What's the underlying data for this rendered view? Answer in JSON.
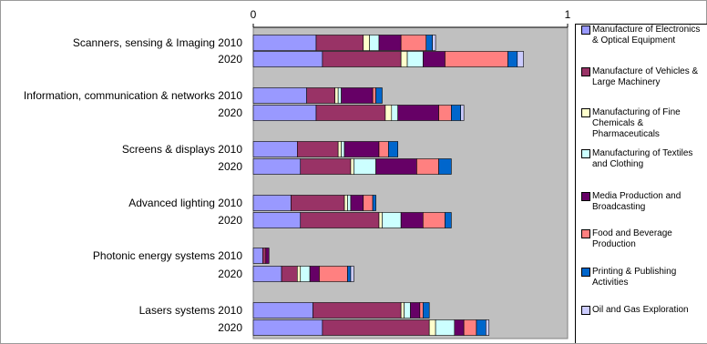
{
  "chart_data": {
    "type": "bar",
    "orientation": "horizontal",
    "stacked": true,
    "xlim": [
      0,
      1
    ],
    "x_ticks": [
      "0",
      "1"
    ],
    "grid": false,
    "legend_position": "right",
    "plot_background": "#c0c0c0",
    "categories": [
      "Scanners, sensing & Imaging 2010",
      "2020",
      "Information, communication & networks 2010",
      "2020",
      "Screens & displays 2010",
      "2020",
      "Advanced lighting 2010",
      "2020",
      "Photonic energy systems 2010",
      "2020",
      "Lasers systems 2010",
      "2020"
    ],
    "series": [
      {
        "name": "Manufacture of Electronics & Optical Equipment",
        "color": "#9999ff",
        "values": [
          0.2,
          0.22,
          0.17,
          0.2,
          0.14,
          0.15,
          0.12,
          0.15,
          0.03,
          0.09,
          0.19,
          0.22
        ]
      },
      {
        "name": "Manufacture of Vehicles & Large Machinery",
        "color": "#993366",
        "values": [
          0.15,
          0.25,
          0.09,
          0.22,
          0.13,
          0.16,
          0.17,
          0.25,
          0.01,
          0.05,
          0.28,
          0.34
        ]
      },
      {
        "name": "Manufacturing of Fine Chemicals & Pharmaceuticals",
        "color": "#ffffcc",
        "values": [
          0.02,
          0.02,
          0.01,
          0.02,
          0.01,
          0.01,
          0.01,
          0.01,
          0.0,
          0.01,
          0.01,
          0.02
        ]
      },
      {
        "name": "Manufacturing of Textiles and Clothing",
        "color": "#ccffff",
        "values": [
          0.03,
          0.05,
          0.01,
          0.02,
          0.01,
          0.07,
          0.01,
          0.06,
          0.0,
          0.03,
          0.02,
          0.06
        ]
      },
      {
        "name": "Media Production and Broadcasting",
        "color": "#660066",
        "values": [
          0.07,
          0.07,
          0.1,
          0.13,
          0.11,
          0.13,
          0.04,
          0.07,
          0.01,
          0.03,
          0.03,
          0.03
        ]
      },
      {
        "name": "Food and Beverage Production",
        "color": "#ff8080",
        "values": [
          0.08,
          0.2,
          0.01,
          0.04,
          0.03,
          0.07,
          0.03,
          0.07,
          0.0,
          0.09,
          0.01,
          0.04
        ]
      },
      {
        "name": "Printing & Publishing Activities",
        "color": "#0066cc",
        "values": [
          0.02,
          0.03,
          0.02,
          0.03,
          0.03,
          0.04,
          0.01,
          0.02,
          0.0,
          0.01,
          0.02,
          0.03
        ]
      },
      {
        "name": "Oil and Gas Exploration",
        "color": "#ccccff",
        "values": [
          0.01,
          0.02,
          0.0,
          0.01,
          0.0,
          0.0,
          0.0,
          0.0,
          0.0,
          0.01,
          0.0,
          0.01
        ]
      }
    ]
  }
}
